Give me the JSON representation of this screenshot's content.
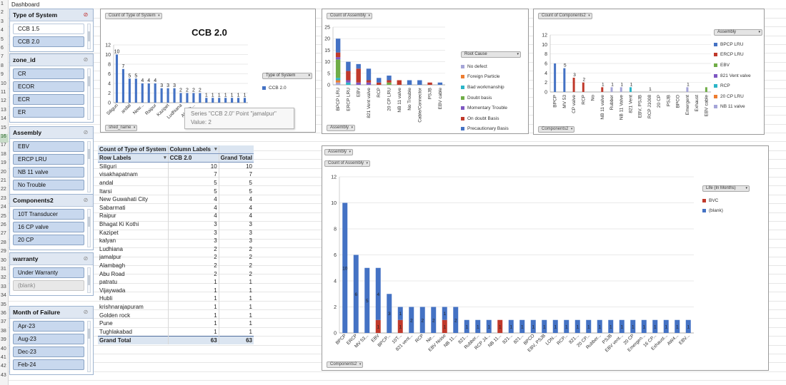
{
  "sheet": {
    "title_cell": "Dashboard",
    "row_numbers": [
      "1",
      "2",
      "3",
      "4",
      "5",
      "6",
      "7",
      "8",
      "9",
      "10",
      "11",
      "12",
      "13",
      "14",
      "15",
      "16",
      "17",
      "18",
      "19",
      "20",
      "21",
      "22",
      "23",
      "24",
      "25",
      "26",
      "27",
      "28",
      "29",
      "30",
      "31",
      "32",
      "33",
      "34",
      "35",
      "36",
      "37",
      "38",
      "39",
      "40",
      "41",
      "42",
      "43"
    ]
  },
  "slicers": [
    {
      "title": "Type of System",
      "clear_active": true,
      "items": [
        {
          "label": "CCB 1.5",
          "state": "plain"
        },
        {
          "label": "CCB 2.0",
          "state": "on"
        }
      ]
    },
    {
      "title": "zone_id",
      "clear_active": false,
      "items": [
        {
          "label": "CR",
          "state": "on"
        },
        {
          "label": "ECOR",
          "state": "on"
        },
        {
          "label": "ECR",
          "state": "on"
        },
        {
          "label": "ER",
          "state": "on"
        }
      ]
    },
    {
      "title": "Assembly",
      "clear_active": false,
      "items": [
        {
          "label": "EBV",
          "state": "on"
        },
        {
          "label": "ERCP LRU",
          "state": "on"
        },
        {
          "label": "NB 11 valve",
          "state": "on"
        },
        {
          "label": "No Trouble",
          "state": "on"
        }
      ]
    },
    {
      "title": "Components2",
      "clear_active": false,
      "items": [
        {
          "label": "10T Transducer",
          "state": "on"
        },
        {
          "label": "16 CP valve",
          "state": "on"
        },
        {
          "label": "20 CP",
          "state": "on"
        }
      ]
    },
    {
      "title": "warranty",
      "clear_active": false,
      "items": [
        {
          "label": "Under Warranty",
          "state": "on"
        },
        {
          "label": "(blank)",
          "state": "blank"
        }
      ]
    },
    {
      "title": "Month of Failure",
      "clear_active": false,
      "items": [
        {
          "label": "Apr-23",
          "state": "on"
        },
        {
          "label": "Aug-23",
          "state": "on"
        },
        {
          "label": "Dec-23",
          "state": "on"
        },
        {
          "label": "Feb-24",
          "state": "on"
        }
      ]
    }
  ],
  "pivot": {
    "header1": [
      "Count of Type of System",
      "Column Labels",
      ""
    ],
    "header2": [
      "Row Labels",
      "CCB 2.0",
      "Grand Total"
    ],
    "rows": [
      [
        "Siliguri",
        "10",
        "10"
      ],
      [
        "visakhapatnam",
        "7",
        "7"
      ],
      [
        "andal",
        "5",
        "5"
      ],
      [
        "Itarsi",
        "5",
        "5"
      ],
      [
        "New Guwahati City",
        "4",
        "4"
      ],
      [
        "Sabarmati",
        "4",
        "4"
      ],
      [
        "Raipur",
        "4",
        "4"
      ],
      [
        "Bhagat Ki Kothi",
        "3",
        "3"
      ],
      [
        "Kazipet",
        "3",
        "3"
      ],
      [
        "kalyan",
        "3",
        "3"
      ],
      [
        "Ludhiana",
        "2",
        "2"
      ],
      [
        "jamalpur",
        "2",
        "2"
      ],
      [
        "Alambagh",
        "2",
        "2"
      ],
      [
        "Abu Road",
        "2",
        "2"
      ],
      [
        "patratu",
        "1",
        "1"
      ],
      [
        "Vijaywada",
        "1",
        "1"
      ],
      [
        "Hubli",
        "1",
        "1"
      ],
      [
        "krishnarajapuram",
        "1",
        "1"
      ],
      [
        "Golden rock",
        "1",
        "1"
      ],
      [
        "Pune",
        "1",
        "1"
      ],
      [
        "Tughlakabad",
        "1",
        "1"
      ]
    ],
    "total": [
      "Grand Total",
      "63",
      "63"
    ]
  },
  "tooltip": {
    "line1": "Series \"CCB 2.0\" Point \"jamalpur\"",
    "line2": "Value: 2"
  },
  "chart_data": [
    {
      "type": "bar",
      "title": "CCB 2.0",
      "field_button": "Count of Type of System",
      "axis_button": "shed_name",
      "legend_title": "Type of System",
      "ylim": [
        0,
        12
      ],
      "yticks": [
        "0",
        "2",
        "4",
        "6",
        "8",
        "10",
        "12"
      ],
      "categories": [
        "Siliguri",
        "visakhapatnam",
        "andal",
        "Itarsi",
        "New...",
        "Sabarmati",
        "Raipur",
        "Bhagat Ki Kothi",
        "Kazipet",
        "kalyan",
        "Ludhiana",
        "jamalpur",
        "Alambagh",
        "Abu Road",
        "patratu",
        "Vijaywada",
        "Hubli",
        "krishnarajapuram",
        "Golden rock",
        "Pune",
        "Tughlakabad"
      ],
      "visible_xlabels": [
        "Siliguri",
        "",
        "andal",
        "",
        "New...",
        "",
        "Raipur",
        "",
        "Kazipet",
        "",
        "Ludhiana",
        "",
        "Alamb...",
        "",
        "",
        "",
        "",
        "",
        "",
        "",
        ""
      ],
      "series": [
        {
          "name": "CCB 2.0",
          "color": "#4472c4",
          "values": [
            10,
            7,
            5,
            5,
            4,
            4,
            4,
            3,
            3,
            3,
            2,
            2,
            2,
            2,
            1,
            1,
            1,
            1,
            1,
            1,
            1
          ]
        }
      ],
      "data_labels": true
    },
    {
      "type": "bar",
      "stacked": true,
      "field_button": "Count of Assembly",
      "axis_button": "Assembly",
      "legend_title": "Root Cause",
      "ylim": [
        0,
        25
      ],
      "yticks": [
        "0",
        "5",
        "10",
        "15",
        "20",
        "25"
      ],
      "categories": [
        "BPCP LRU",
        "ERCP LRU",
        "EBV",
        "821 Vent valve",
        "RCP",
        "20 CP LRU",
        "NB 11 valve",
        "No Trouble",
        "Cable/Connector",
        "PSJB",
        "EBV cable"
      ],
      "series": [
        {
          "name": "No defect",
          "color": "#a5a5d8",
          "values": [
            1,
            0,
            0,
            0,
            0,
            0,
            0,
            0,
            0,
            0,
            0
          ]
        },
        {
          "name": "Foreign Particle",
          "color": "#ed7d31",
          "values": [
            1,
            0,
            0,
            0,
            0,
            0,
            0,
            0,
            0,
            0,
            0
          ]
        },
        {
          "name": "Bad workmanship",
          "color": "#2bb5c8",
          "values": [
            1,
            1,
            0,
            0,
            0,
            0,
            0,
            0,
            0,
            0,
            0
          ]
        },
        {
          "name": "Doubt basis",
          "color": "#70ad47",
          "values": [
            8,
            0,
            0,
            0,
            0,
            1,
            0,
            0,
            0,
            0,
            0
          ]
        },
        {
          "name": "Momentary Trouble",
          "color": "#7e57c2",
          "values": [
            1,
            1,
            1,
            1,
            0,
            0,
            0,
            0,
            0,
            0,
            0
          ]
        },
        {
          "name": "On doubt Basis",
          "color": "#c0392b",
          "values": [
            2,
            4,
            6,
            1,
            1,
            1,
            2,
            0,
            0,
            1,
            0
          ]
        },
        {
          "name": "Precautionary Basis",
          "color": "#4472c4",
          "values": [
            6,
            4,
            2,
            5,
            2,
            2,
            0,
            2,
            2,
            0,
            1
          ]
        }
      ]
    },
    {
      "type": "bar",
      "field_button": "Count of Components2",
      "axis_button": "Components2",
      "legend_title": "Assembly",
      "ylim": [
        0,
        12
      ],
      "yticks": [
        "0",
        "2",
        "4",
        "6",
        "8",
        "10",
        "12"
      ],
      "categories": [
        "BPCP",
        "MV 53",
        "CP valve",
        "RCP",
        "No",
        "NB 11 valve",
        "Rubber",
        "NB 11 Valve",
        "821 Vent",
        "EBV, PSJB",
        "RCP J1008",
        "20 CP",
        "PSJB",
        "BPCO",
        "Emergent",
        "Exhaust",
        "EBV cable"
      ],
      "series": [
        {
          "name": "BPCP LRU",
          "color": "#4472c4",
          "values": [
            6,
            5,
            0,
            0,
            0,
            0,
            0,
            0,
            0,
            0,
            0,
            0,
            0,
            0,
            0,
            0,
            0
          ]
        },
        {
          "name": "ERCP LRU",
          "color": "#c0392b",
          "values": [
            0,
            0,
            3,
            2,
            0,
            1,
            0,
            0,
            0,
            0,
            0,
            0,
            0,
            0,
            0,
            0,
            0
          ]
        },
        {
          "name": "EBV",
          "color": "#70ad47",
          "values": [
            0,
            0,
            0,
            0,
            0,
            0,
            0,
            0,
            0,
            0,
            0,
            0,
            0,
            0,
            0,
            0,
            1
          ]
        },
        {
          "name": "821 Vent valve",
          "color": "#7e57c2",
          "values": [
            0,
            0,
            0,
            0,
            0,
            0,
            0,
            0,
            0,
            0,
            0,
            0,
            0,
            0,
            0,
            0,
            0
          ]
        },
        {
          "name": "RCP",
          "color": "#2bb5c8",
          "values": [
            0,
            0,
            0,
            0,
            0,
            0,
            0,
            0,
            1,
            0,
            0,
            0,
            0,
            0,
            0,
            0,
            0
          ]
        },
        {
          "name": "20 CP LRU",
          "color": "#ed7d31",
          "values": [
            0,
            0,
            0,
            0,
            0,
            0,
            0,
            0,
            0,
            0,
            0,
            0,
            0,
            0,
            0,
            0,
            0
          ]
        },
        {
          "name": "NB 11 valve",
          "color": "#a5a5d8",
          "values": [
            0,
            0,
            0,
            0,
            0,
            0,
            1,
            1,
            0,
            0,
            0,
            0,
            0,
            0,
            1,
            0,
            0
          ]
        }
      ],
      "data_labels": [
        "",
        "5",
        "3",
        "2",
        "",
        "1",
        "1",
        "1",
        "1",
        "",
        "1",
        "",
        "",
        "",
        "1",
        "",
        ""
      ]
    },
    {
      "type": "bar",
      "stacked": true,
      "field_button": "Count of Assembly",
      "filter_button": "Assembly",
      "axis_button": "Components2",
      "legend_title": "Life (In Months)",
      "ylim": [
        0,
        12
      ],
      "yticks": [
        "0",
        "2",
        "4",
        "6",
        "8",
        "10",
        "12"
      ],
      "categories": [
        "BPCP",
        "ERCP",
        "MV 53...",
        "EBV",
        "BPCP...",
        "10T...",
        "821 vent...",
        "RCP",
        "Ne...",
        "EBV Noise",
        "NB 11...",
        "821...",
        "Rubber...",
        "RCP J4...",
        "NB 11...",
        "821...",
        "821...",
        "BPCO",
        "EBV, PSJB",
        "LON...",
        "RCP...",
        "821...",
        "20 CP...",
        "Rubber...",
        "PSJB",
        "EBV vent...",
        "20 CP",
        "Emergen...",
        "16 CP...",
        "Exhaust...",
        "AW4...",
        "EBV..."
      ],
      "series": [
        {
          "name": "BVC",
          "color": "#c0392b",
          "values": [
            0,
            0,
            0,
            1,
            0,
            1,
            0,
            0,
            0,
            1,
            0,
            0,
            0,
            0,
            1,
            0,
            0,
            0,
            0,
            0,
            0,
            0,
            0,
            0,
            0,
            0,
            0,
            0,
            0,
            0,
            0,
            0
          ]
        },
        {
          "name": "(blank)",
          "color": "#4472c4",
          "values": [
            10,
            6,
            5,
            4,
            3,
            1,
            2,
            2,
            2,
            1,
            2,
            1,
            1,
            1,
            0,
            1,
            1,
            1,
            1,
            1,
            1,
            1,
            1,
            1,
            1,
            1,
            1,
            1,
            1,
            1,
            1,
            1
          ]
        }
      ]
    }
  ]
}
